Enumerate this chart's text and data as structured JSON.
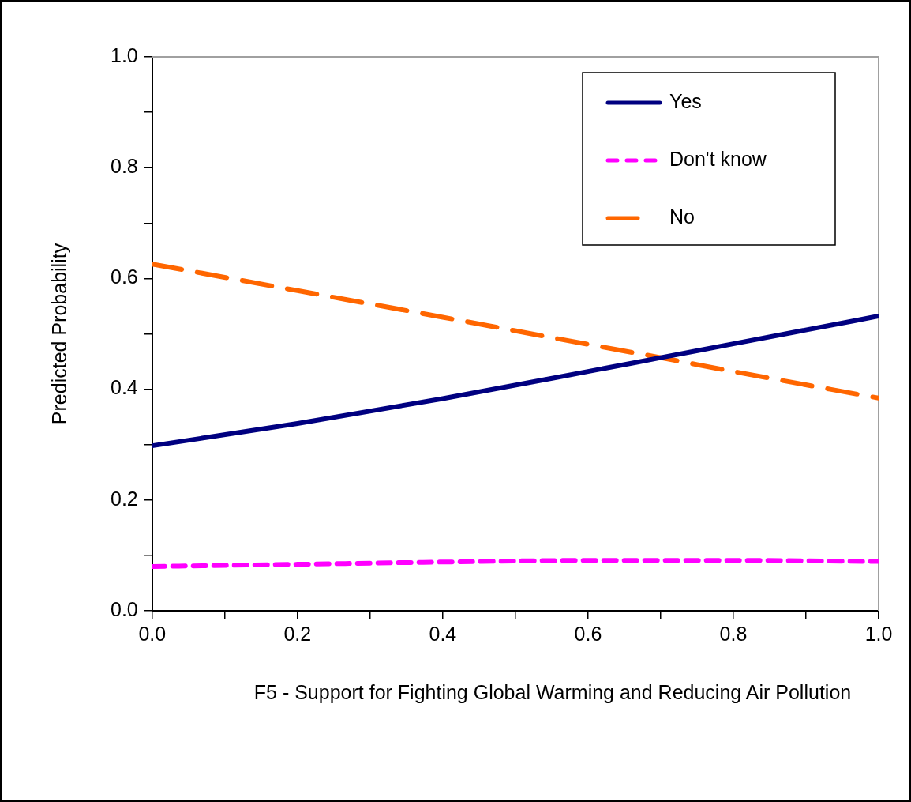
{
  "chart_data": {
    "type": "line",
    "ylabel": "Predicted Probability",
    "xlabel": "F5 - Support for Fighting Global Warming and Reducing Air Pollution",
    "x": [
      0,
      0.2,
      0.4,
      0.6,
      0.7,
      0.8,
      1.0
    ],
    "series": [
      {
        "name": "Yes",
        "color": "#000080",
        "line_style": "solid",
        "values": [
          0.298,
          0.338,
          0.383,
          0.432,
          0.457,
          0.482,
          0.532
        ]
      },
      {
        "name": "Don't know",
        "color": "#ff00ff",
        "line_style": "dashed",
        "values": [
          0.08,
          0.084,
          0.088,
          0.091,
          0.091,
          0.091,
          0.089
        ]
      },
      {
        "name": "No",
        "color": "#ff6600",
        "line_style": "dashed",
        "values": [
          0.626,
          0.578,
          0.53,
          0.481,
          0.457,
          0.432,
          0.384
        ]
      }
    ],
    "xlim": [
      0,
      1
    ],
    "ylim": [
      0,
      1
    ],
    "xticks": [
      {
        "value": 0,
        "label": "0.0"
      },
      {
        "value": 0.1,
        "label": null
      },
      {
        "value": 0.2,
        "label": "0.2"
      },
      {
        "value": 0.3,
        "label": null
      },
      {
        "value": 0.4,
        "label": "0.4"
      },
      {
        "value": 0.5,
        "label": null
      },
      {
        "value": 0.6,
        "label": "0.6"
      },
      {
        "value": 0.7,
        "label": null
      },
      {
        "value": 0.8,
        "label": "0.8"
      },
      {
        "value": 0.9,
        "label": null
      },
      {
        "value": 1,
        "label": "1.0"
      }
    ],
    "yticks": [
      {
        "value": 0,
        "label": "0.0"
      },
      {
        "value": 0.1,
        "label": null
      },
      {
        "value": 0.2,
        "label": "0.2"
      },
      {
        "value": 0.3,
        "label": null
      },
      {
        "value": 0.4,
        "label": "0.4"
      },
      {
        "value": 0.5,
        "label": null
      },
      {
        "value": 0.6,
        "label": "0.6"
      },
      {
        "value": 0.7,
        "label": null
      },
      {
        "value": 0.8,
        "label": "0.8"
      },
      {
        "value": 0.9,
        "label": null
      },
      {
        "value": 1,
        "label": "1.0"
      }
    ],
    "grid": false,
    "legend": "top right",
    "marker": "none"
  }
}
